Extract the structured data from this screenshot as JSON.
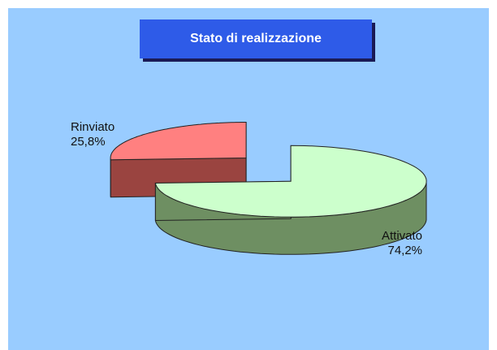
{
  "chart_data": {
    "type": "pie",
    "title": "Stato di realizzazione",
    "slices": [
      {
        "label": "Attivato",
        "percent_label": "74,2%",
        "value": 74.2,
        "color": "#ccffcc",
        "side_color": "#6e8f62"
      },
      {
        "label": "Rinviato",
        "percent_label": "25,8%",
        "value": 25.8,
        "color": "#ff8080",
        "side_color": "#9a4440"
      }
    ],
    "three_d": true,
    "exploded": true,
    "background_color": "#99ccff"
  }
}
